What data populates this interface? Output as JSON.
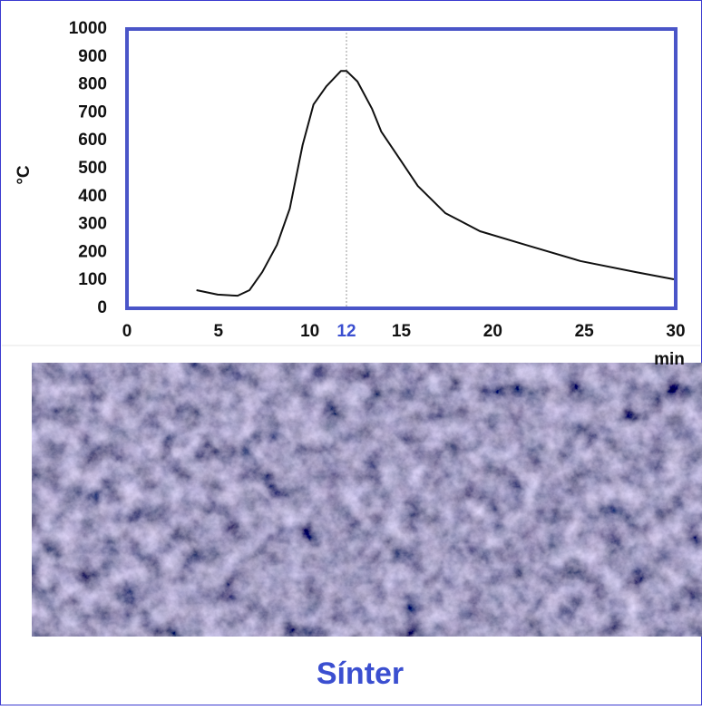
{
  "chart_data": {
    "type": "line",
    "ylabel": "°C",
    "xlabel": "min",
    "x": [
      3.8,
      4.96,
      6.05,
      6.7,
      7.4,
      8.2,
      8.9,
      9.6,
      10.2,
      10.9,
      11.7,
      12,
      12.6,
      13.4,
      13.9,
      14.9,
      15.9,
      17.4,
      19.3,
      21.8,
      24.8,
      27.8,
      29.9
    ],
    "values": [
      65,
      49,
      45,
      65,
      130,
      227,
      357,
      584,
      730,
      795,
      850,
      850,
      812,
      714,
      633,
      536,
      438,
      341,
      276,
      227,
      169,
      130,
      104
    ],
    "color": "#111111",
    "xlim": [
      0,
      30
    ],
    "xticks": [
      0,
      5,
      10,
      12,
      15,
      20,
      25,
      30
    ],
    "ylim": [
      0,
      1000
    ],
    "yticks": [
      0,
      100,
      200,
      300,
      400,
      500,
      600,
      700,
      800,
      900,
      1000
    ],
    "highlight": {
      "x": 12,
      "color": "#3b4fd0"
    },
    "frame_color": "#4a55c8"
  },
  "caption": "Sínter"
}
